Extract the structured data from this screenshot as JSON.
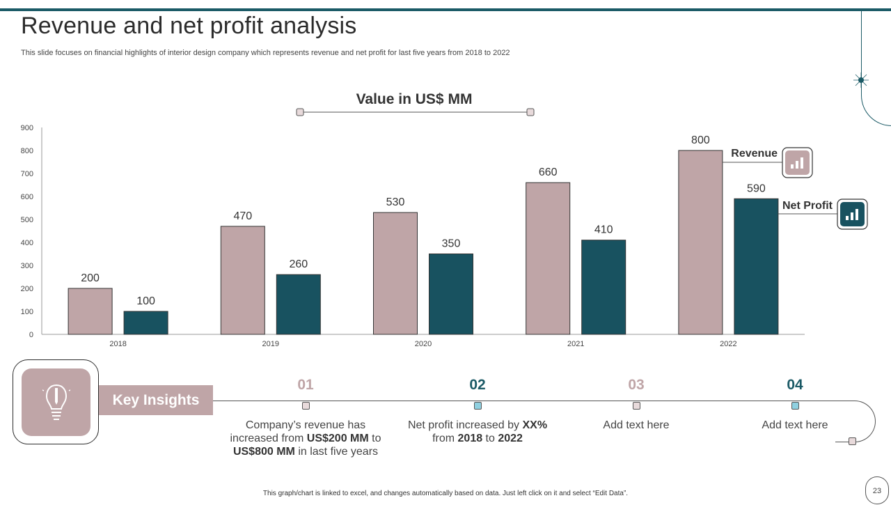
{
  "slide": {
    "title": "Revenue and net profit analysis",
    "subtitle": "This slide focuses on financial highlights of interior design company which represents revenue and net profit for last five years from 2018 to 2022",
    "footnote": "This graph/chart is linked to excel, and changes automatically based on data. Just left click on it and select “Edit Data”.",
    "page_number": "23"
  },
  "colors": {
    "revenue": "#bfa5a7",
    "net_profit": "#185260",
    "accent_teal": "#1b5a66",
    "marker_blue": "#8fd0e0",
    "marker_rose": "#e8dadb"
  },
  "chart_data": {
    "type": "bar",
    "title": "Value in US$ MM",
    "categories": [
      "2018",
      "2019",
      "2020",
      "2021",
      "2022"
    ],
    "series": [
      {
        "name": "Revenue",
        "values": [
          200,
          470,
          530,
          660,
          800
        ]
      },
      {
        "name": "Net Profit",
        "values": [
          100,
          260,
          350,
          410,
          590
        ]
      }
    ],
    "ylim": [
      0,
      900
    ],
    "yticks": [
      "0",
      "100",
      "200",
      "300",
      "400",
      "500",
      "600",
      "700",
      "800",
      "900"
    ],
    "xlabel": "",
    "ylabel": "",
    "legend_position": "right"
  },
  "insights": {
    "label": "Key Insights",
    "items": [
      {
        "number": "01",
        "text_html": "Company’s revenue has increased from <b>US$200 MM</b> to <b>US$800 MM</b> in last five years"
      },
      {
        "number": "02",
        "text_html": "Net profit increased by <b>XX%</b> from <b>2018</b> to <b>2022</b>"
      },
      {
        "number": "03",
        "text_html": "Add text here"
      },
      {
        "number": "04",
        "text_html": "Add text here"
      }
    ]
  }
}
